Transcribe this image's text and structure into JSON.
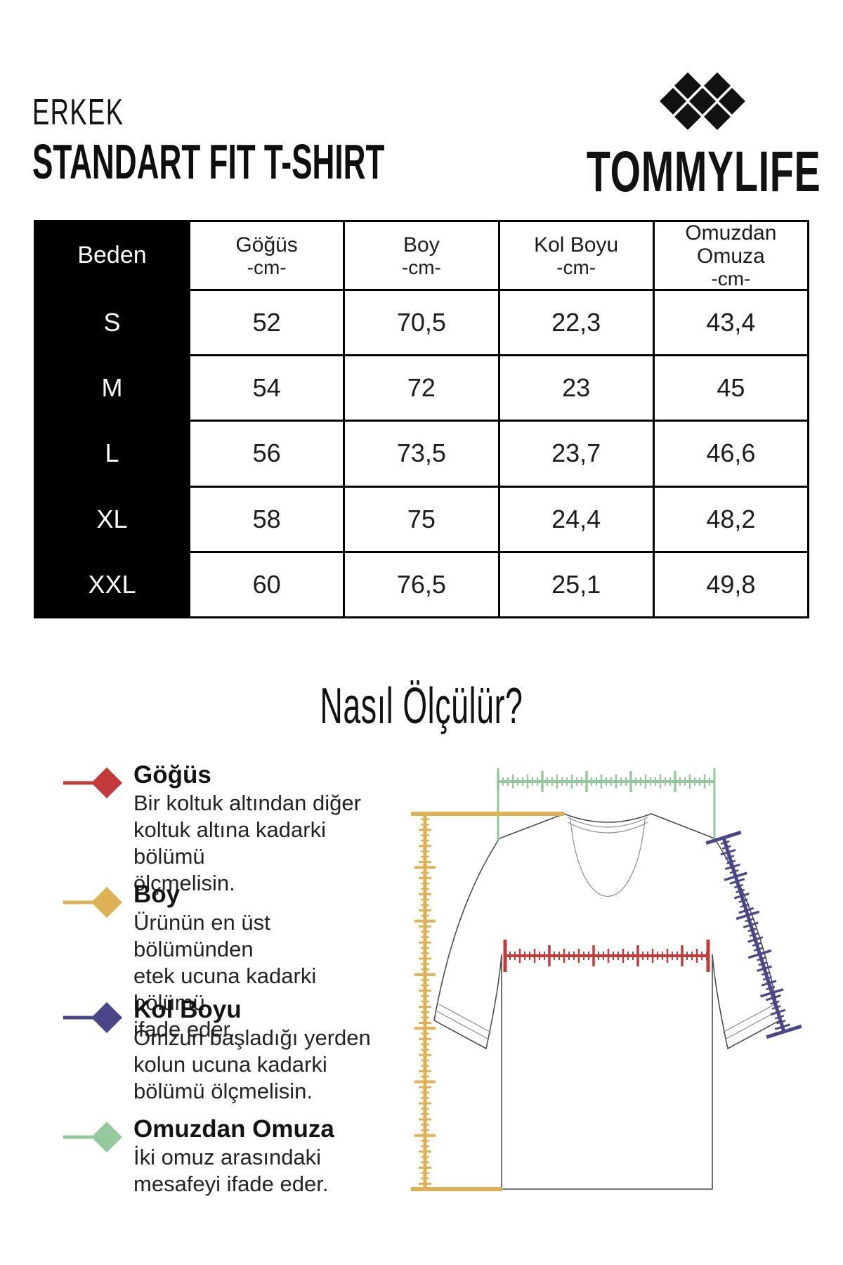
{
  "header": {
    "category": "ERKEK",
    "title": "STANDART FIT T-SHIRT",
    "brand": "TOMMYLIFE",
    "logo_color": "#111111"
  },
  "size_table": {
    "header": [
      {
        "name": "Beden",
        "unit": ""
      },
      {
        "name": "Göğüs",
        "unit": "-cm-"
      },
      {
        "name": "Boy",
        "unit": "-cm-"
      },
      {
        "name": "Kol Boyu",
        "unit": "-cm-"
      },
      {
        "name": "Omuzdan Omuza",
        "unit": "-cm-"
      }
    ],
    "rows": [
      {
        "size": "S",
        "gogus": "52",
        "boy": "70,5",
        "kol_boyu": "22,3",
        "omuz": "43,4"
      },
      {
        "size": "M",
        "gogus": "54",
        "boy": "72",
        "kol_boyu": "23",
        "omuz": "45"
      },
      {
        "size": "L",
        "gogus": "56",
        "boy": "73,5",
        "kol_boyu": "23,7",
        "omuz": "46,6"
      },
      {
        "size": "XL",
        "gogus": "58",
        "boy": "75",
        "kol_boyu": "24,4",
        "omuz": "48,2"
      },
      {
        "size": "XXL",
        "gogus": "60",
        "boy": "76,5",
        "kol_boyu": "25,1",
        "omuz": "49,8"
      }
    ]
  },
  "how_to": {
    "heading": "Nasıl Ölçülür?",
    "legend": [
      {
        "name": "Göğüs",
        "color": "#c23b3b",
        "desc": "Bir koltuk altından diğer\nkoltuk altına kadarki bölümü\nölçmelisin."
      },
      {
        "name": "Boy",
        "color": "#dfb155",
        "desc": "Ürünün en üst bölümünden\netek ucuna kadarki bölümü\nifade eder."
      },
      {
        "name": "Kol Boyu",
        "color": "#4b4589",
        "desc": "Omzun başladığı yerden\nkolun ucuna kadarki\nbölümü ölçmelisin."
      },
      {
        "name": "Omuzdan Omuza",
        "color": "#96c89e",
        "desc": "İki omuz arasındaki\nmesafeyi ifade eder."
      }
    ]
  },
  "diagram": {
    "shirt_outline_color": "#4d4d4d",
    "stitch_color": "#8a8a8a"
  }
}
